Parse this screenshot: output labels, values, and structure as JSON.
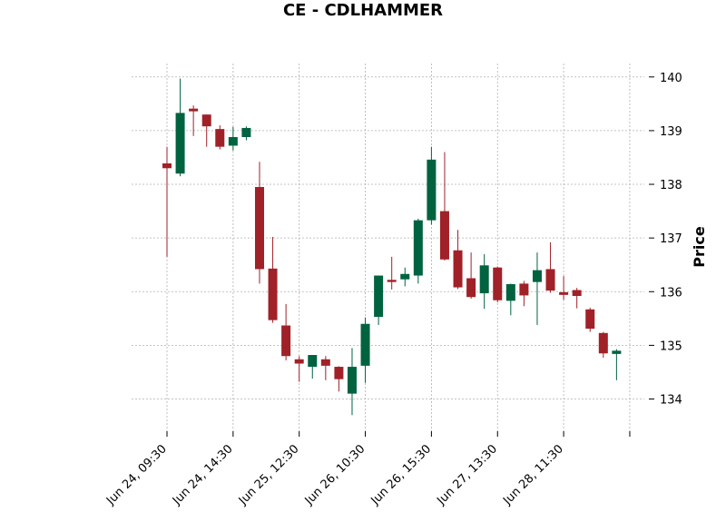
{
  "chart_data": {
    "type": "candlestick",
    "title": "CE - CDLHAMMER",
    "ylabel": "Price",
    "ylim": [
      133.4,
      140.25
    ],
    "y_ticks": [
      134,
      135,
      136,
      137,
      138,
      139,
      140
    ],
    "y_axis_side": "right",
    "grid": true,
    "x_tick_labels": [
      {
        "index": 0,
        "label": "Jun 24, 09:30"
      },
      {
        "index": 5,
        "label": "Jun 24, 14:30"
      },
      {
        "index": 10,
        "label": "Jun 25, 12:30"
      },
      {
        "index": 15,
        "label": "Jun 26, 10:30"
      },
      {
        "index": 20,
        "label": "Jun 26, 15:30"
      },
      {
        "index": 25,
        "label": "Jun 27, 13:30"
      },
      {
        "index": 30,
        "label": "Jun 28, 11:30"
      },
      {
        "index": 35,
        "label": ""
      }
    ],
    "colors": {
      "up": "#006340",
      "down": "#a02128"
    },
    "candles": [
      {
        "o": 138.39,
        "h": 138.7,
        "l": 136.65,
        "c": 138.3
      },
      {
        "o": 138.2,
        "h": 139.97,
        "l": 138.15,
        "c": 139.33
      },
      {
        "o": 139.41,
        "h": 139.47,
        "l": 138.9,
        "c": 139.36
      },
      {
        "o": 139.3,
        "h": 139.3,
        "l": 138.7,
        "c": 139.08
      },
      {
        "o": 139.03,
        "h": 139.1,
        "l": 138.65,
        "c": 138.7
      },
      {
        "o": 138.72,
        "h": 139.07,
        "l": 138.63,
        "c": 138.88
      },
      {
        "o": 138.88,
        "h": 139.08,
        "l": 138.82,
        "c": 139.05
      },
      {
        "o": 137.95,
        "h": 138.42,
        "l": 136.15,
        "c": 136.42
      },
      {
        "o": 136.43,
        "h": 137.02,
        "l": 135.42,
        "c": 135.47
      },
      {
        "o": 135.37,
        "h": 135.77,
        "l": 134.72,
        "c": 134.8
      },
      {
        "o": 134.74,
        "h": 134.8,
        "l": 134.32,
        "c": 134.66
      },
      {
        "o": 134.6,
        "h": 134.82,
        "l": 134.38,
        "c": 134.82
      },
      {
        "o": 134.74,
        "h": 134.8,
        "l": 134.35,
        "c": 134.62
      },
      {
        "o": 134.6,
        "h": 134.61,
        "l": 134.14,
        "c": 134.37
      },
      {
        "o": 134.1,
        "h": 134.95,
        "l": 133.7,
        "c": 134.6
      },
      {
        "o": 134.62,
        "h": 135.52,
        "l": 134.3,
        "c": 135.4
      },
      {
        "o": 135.53,
        "h": 136.3,
        "l": 135.38,
        "c": 136.3
      },
      {
        "o": 136.22,
        "h": 136.65,
        "l": 136.04,
        "c": 136.18
      },
      {
        "o": 136.23,
        "h": 136.45,
        "l": 136.1,
        "c": 136.33
      },
      {
        "o": 136.3,
        "h": 137.36,
        "l": 136.15,
        "c": 137.33
      },
      {
        "o": 137.33,
        "h": 138.7,
        "l": 137.25,
        "c": 138.46
      },
      {
        "o": 137.5,
        "h": 138.6,
        "l": 136.58,
        "c": 136.6
      },
      {
        "o": 136.77,
        "h": 137.15,
        "l": 136.05,
        "c": 136.08
      },
      {
        "o": 136.25,
        "h": 136.73,
        "l": 135.87,
        "c": 135.9
      },
      {
        "o": 135.97,
        "h": 136.7,
        "l": 135.68,
        "c": 136.49
      },
      {
        "o": 136.45,
        "h": 136.47,
        "l": 135.8,
        "c": 135.84
      },
      {
        "o": 135.83,
        "h": 136.15,
        "l": 135.56,
        "c": 136.14
      },
      {
        "o": 136.15,
        "h": 136.2,
        "l": 135.73,
        "c": 135.93
      },
      {
        "o": 136.18,
        "h": 136.73,
        "l": 135.38,
        "c": 136.4
      },
      {
        "o": 136.42,
        "h": 136.92,
        "l": 135.98,
        "c": 136.02
      },
      {
        "o": 135.99,
        "h": 136.29,
        "l": 135.85,
        "c": 135.94
      },
      {
        "o": 136.03,
        "h": 136.07,
        "l": 135.69,
        "c": 135.92
      },
      {
        "o": 135.67,
        "h": 135.7,
        "l": 135.25,
        "c": 135.31
      },
      {
        "o": 135.23,
        "h": 135.25,
        "l": 134.77,
        "c": 134.85
      },
      {
        "o": 134.84,
        "h": 134.93,
        "l": 134.35,
        "c": 134.9
      }
    ]
  }
}
